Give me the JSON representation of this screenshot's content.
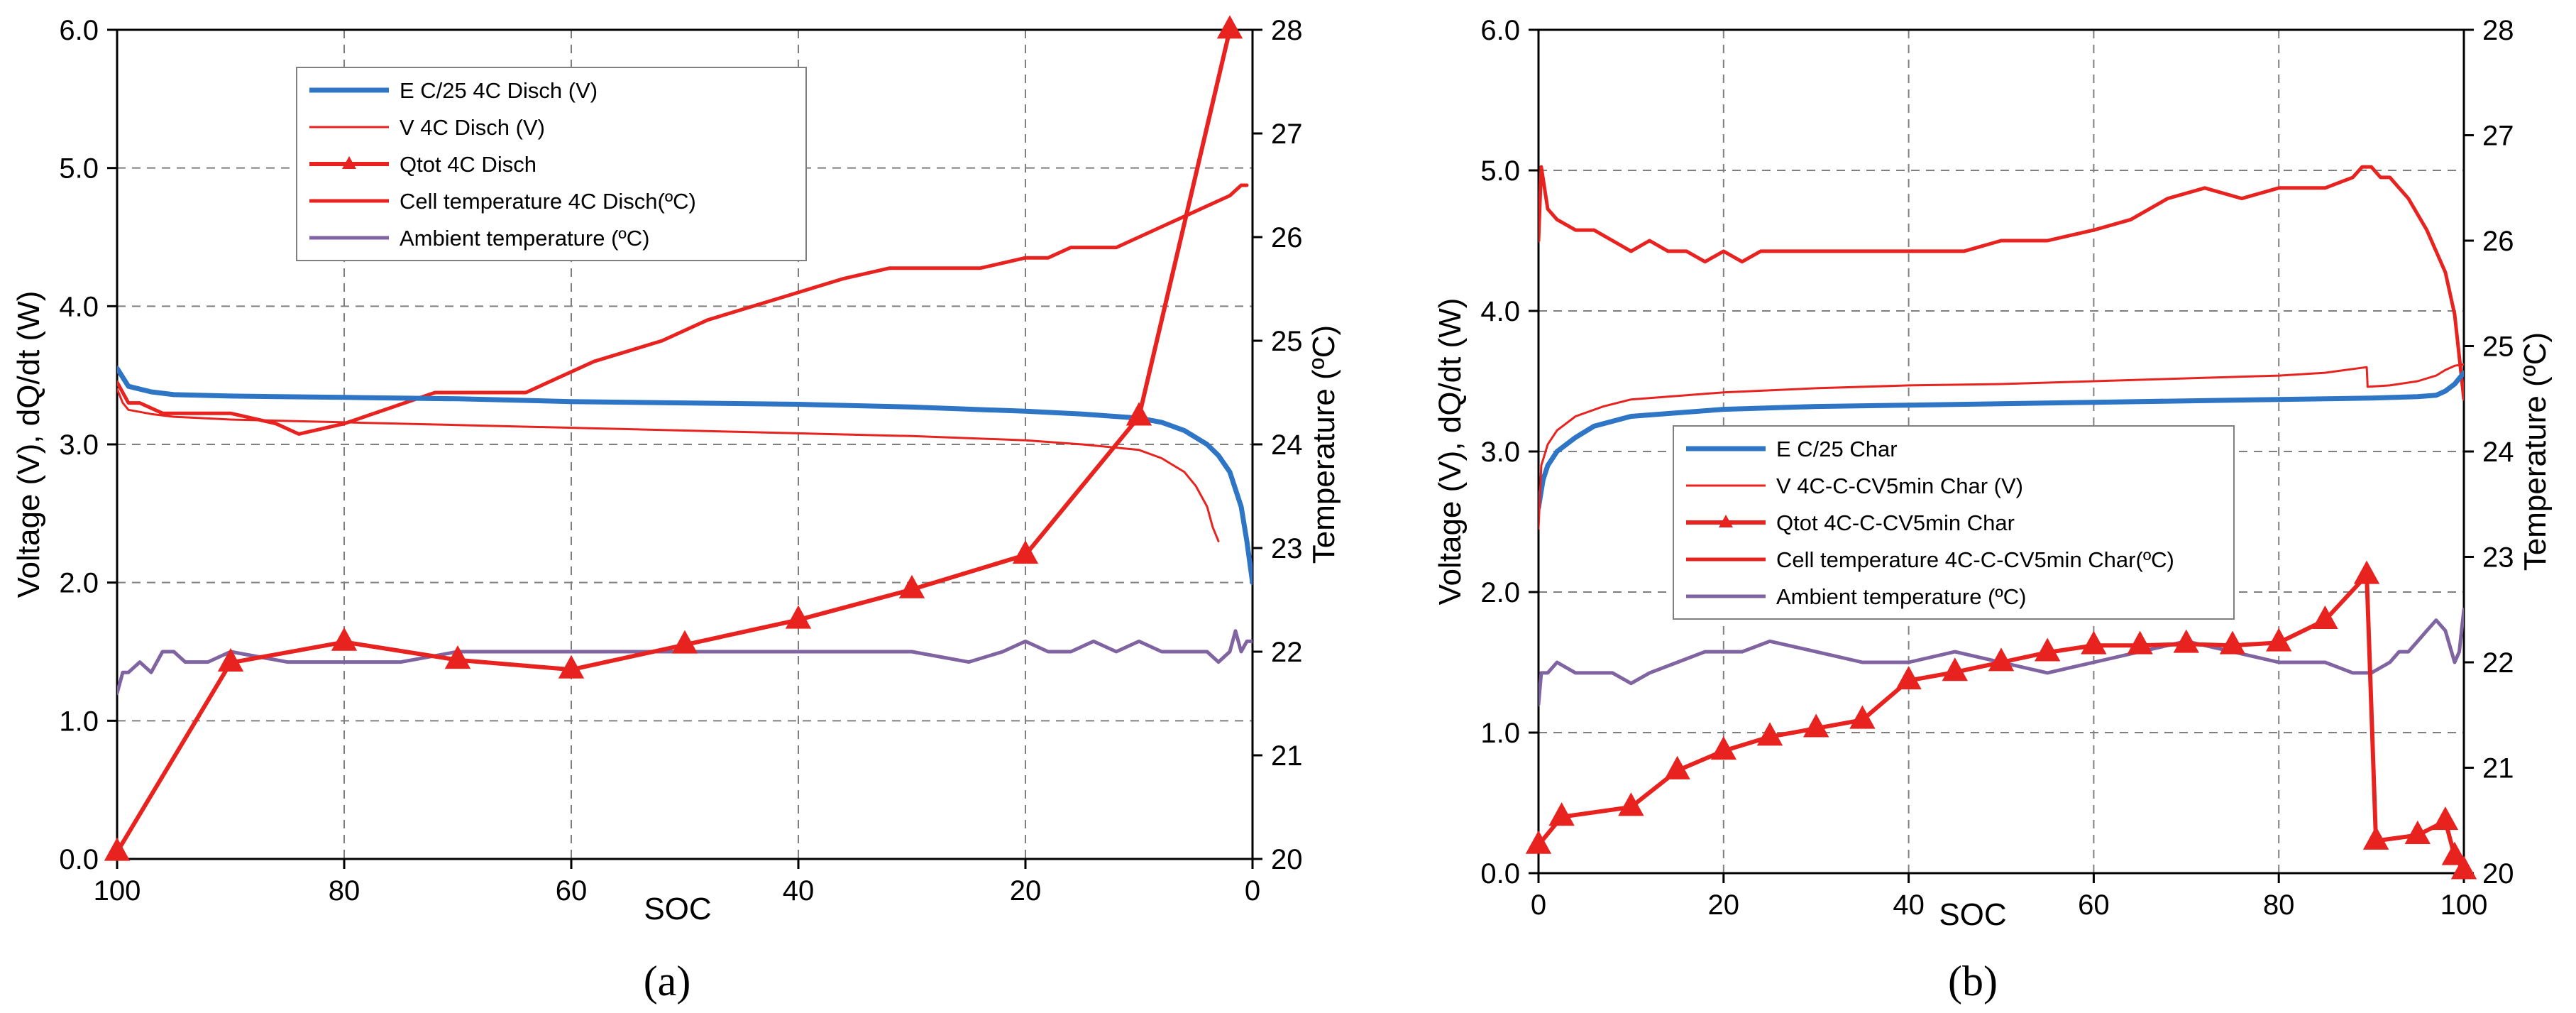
{
  "chart_data": [
    {
      "type": "line",
      "panel_label": "(a)",
      "xlabel": "SOC",
      "ylabel_left": "Voltage (V),    dQ/dt (W)",
      "ylabel_right": "Temperature (ºC)",
      "xlim": [
        100,
        0
      ],
      "ylim_left": [
        0.0,
        6.0
      ],
      "ylim_right": [
        20,
        28
      ],
      "xticks": [
        "100",
        "80",
        "60",
        "40",
        "20",
        "0"
      ],
      "xtick_values": [
        100,
        80,
        60,
        40,
        20,
        0
      ],
      "yticks_left": [
        "0.0",
        "1.0",
        "2.0",
        "3.0",
        "4.0",
        "5.0",
        "6.0"
      ],
      "ytick_values_left": [
        0,
        1,
        2,
        3,
        4,
        5,
        6
      ],
      "yticks_right": [
        "20",
        "21",
        "22",
        "23",
        "24",
        "25",
        "26",
        "27",
        "28"
      ],
      "ytick_values_right": [
        20,
        21,
        22,
        23,
        24,
        25,
        26,
        27,
        28
      ],
      "grid": true,
      "legend_position": "top-center",
      "series": [
        {
          "name": "E C/25 4C Disch (V)",
          "axis": "left",
          "color": "#2e75c6",
          "width": 7,
          "marker": "none",
          "x": [
            100,
            99,
            97,
            95,
            90,
            80,
            70,
            60,
            50,
            40,
            30,
            20,
            15,
            10,
            8,
            6,
            4,
            3,
            2,
            1,
            0.5,
            0
          ],
          "y": [
            3.55,
            3.42,
            3.38,
            3.36,
            3.35,
            3.34,
            3.33,
            3.31,
            3.3,
            3.29,
            3.27,
            3.24,
            3.22,
            3.19,
            3.16,
            3.1,
            3.0,
            2.92,
            2.8,
            2.55,
            2.3,
            2.0
          ]
        },
        {
          "name": "V 4C Disch (V)",
          "axis": "left",
          "color": "#e8231f",
          "width": 3,
          "marker": "none",
          "x": [
            100,
            99.5,
            99,
            97,
            95,
            90,
            80,
            70,
            60,
            50,
            40,
            30,
            20,
            15,
            10,
            8,
            6,
            5,
            4,
            3.5,
            3
          ],
          "y": [
            3.4,
            3.3,
            3.25,
            3.22,
            3.2,
            3.18,
            3.16,
            3.14,
            3.12,
            3.1,
            3.08,
            3.06,
            3.03,
            3.0,
            2.96,
            2.9,
            2.8,
            2.7,
            2.55,
            2.4,
            2.3
          ]
        },
        {
          "name": "Qtot 4C Disch",
          "axis": "left",
          "color": "#e8231f",
          "width": 6,
          "marker": "triangle",
          "x": [
            100,
            90,
            80,
            70,
            60,
            50,
            40,
            30,
            20,
            10,
            2
          ],
          "y": [
            0.05,
            1.42,
            1.57,
            1.44,
            1.37,
            1.55,
            1.73,
            1.95,
            2.2,
            3.2,
            6.0
          ]
        },
        {
          "name": "Cell temperature 4C Disch(ºC)",
          "axis": "right",
          "color": "#e8231f",
          "width": 5,
          "marker": "none",
          "x": [
            100,
            99,
            98,
            96,
            94,
            92,
            90,
            86,
            84,
            80,
            72,
            64,
            58,
            52,
            48,
            42,
            36,
            32,
            28,
            24,
            20,
            18,
            16,
            14,
            12,
            10,
            8,
            6,
            4,
            2,
            1,
            0.5
          ],
          "y": [
            24.6,
            24.4,
            24.4,
            24.3,
            24.3,
            24.3,
            24.3,
            24.2,
            24.1,
            24.2,
            24.5,
            24.5,
            24.8,
            25.0,
            25.2,
            25.4,
            25.6,
            25.7,
            25.7,
            25.7,
            25.8,
            25.8,
            25.9,
            25.9,
            25.9,
            26.0,
            26.1,
            26.2,
            26.3,
            26.4,
            26.5,
            26.5
          ]
        },
        {
          "name": "Ambient temperature (ºC)",
          "axis": "right",
          "color": "#8064a2",
          "width": 5,
          "marker": "none",
          "x": [
            100,
            99.5,
            99,
            98,
            97,
            96,
            95,
            94,
            92,
            90,
            85,
            80,
            75,
            70,
            65,
            60,
            55,
            50,
            45,
            40,
            35,
            30,
            25,
            22,
            20,
            18,
            16,
            14,
            12,
            10,
            8,
            6,
            4,
            3,
            2,
            1.5,
            1,
            0.5,
            0
          ],
          "y": [
            21.6,
            21.8,
            21.8,
            21.9,
            21.8,
            22.0,
            22.0,
            21.9,
            21.9,
            22.0,
            21.9,
            21.9,
            21.9,
            22.0,
            22.0,
            22.0,
            22.0,
            22.0,
            22.0,
            22.0,
            22.0,
            22.0,
            21.9,
            22.0,
            22.1,
            22.0,
            22.0,
            22.1,
            22.0,
            22.1,
            22.0,
            22.0,
            22.0,
            21.9,
            22.0,
            22.2,
            22.0,
            22.1,
            22.1
          ]
        }
      ]
    },
    {
      "type": "line",
      "panel_label": "(b)",
      "xlabel": "SOC",
      "ylabel_left": "Voltage (V),    dQ/dt (W)",
      "ylabel_right": "Temperature (ºC)",
      "xlim": [
        0,
        100
      ],
      "ylim_left": [
        0.0,
        6.0
      ],
      "ylim_right": [
        20,
        28
      ],
      "xticks": [
        "0",
        "20",
        "40",
        "60",
        "80",
        "100"
      ],
      "xtick_values": [
        0,
        20,
        40,
        60,
        80,
        100
      ],
      "yticks_left": [
        "0.0",
        "1.0",
        "2.0",
        "3.0",
        "4.0",
        "5.0",
        "6.0"
      ],
      "ytick_values_left": [
        0,
        1,
        2,
        3,
        4,
        5,
        6
      ],
      "yticks_right": [
        "20",
        "21",
        "22",
        "23",
        "24",
        "25",
        "26",
        "27",
        "28"
      ],
      "ytick_values_right": [
        20,
        21,
        22,
        23,
        24,
        25,
        26,
        27,
        28
      ],
      "grid": true,
      "legend_position": "center-left",
      "series": [
        {
          "name": "E C/25 Char",
          "axis": "left",
          "color": "#2e75c6",
          "width": 7,
          "marker": "none",
          "x": [
            0,
            0.5,
            1,
            2,
            4,
            6,
            10,
            20,
            30,
            40,
            50,
            60,
            70,
            80,
            90,
            95,
            97,
            98,
            99,
            100
          ],
          "y": [
            2.6,
            2.8,
            2.9,
            3.0,
            3.1,
            3.18,
            3.25,
            3.3,
            3.32,
            3.33,
            3.34,
            3.35,
            3.36,
            3.37,
            3.38,
            3.39,
            3.4,
            3.43,
            3.48,
            3.56
          ]
        },
        {
          "name": "V 4C-C-CV5min Char (V)",
          "axis": "left",
          "color": "#e8231f",
          "width": 3,
          "marker": "none",
          "x": [
            0,
            0.3,
            1,
            2,
            4,
            7,
            10,
            20,
            30,
            40,
            50,
            60,
            70,
            80,
            85,
            89.5,
            89.6,
            92,
            95,
            97,
            98,
            99,
            100
          ],
          "y": [
            2.45,
            2.9,
            3.05,
            3.15,
            3.25,
            3.32,
            3.37,
            3.42,
            3.45,
            3.47,
            3.48,
            3.5,
            3.52,
            3.54,
            3.56,
            3.6,
            3.46,
            3.47,
            3.5,
            3.54,
            3.58,
            3.61,
            3.62
          ]
        },
        {
          "name": "Qtot 4C-C-CV5min Char",
          "axis": "left",
          "color": "#e8231f",
          "width": 6,
          "marker": "triangle",
          "x": [
            0,
            2.5,
            10,
            15,
            20,
            25,
            30,
            35,
            40,
            45,
            50,
            55,
            60,
            65,
            70,
            75,
            80,
            85,
            89.5,
            90.5,
            95,
            98,
            99,
            100
          ],
          "y": [
            0.2,
            0.4,
            0.47,
            0.73,
            0.87,
            0.97,
            1.03,
            1.09,
            1.37,
            1.43,
            1.5,
            1.57,
            1.62,
            1.62,
            1.63,
            1.62,
            1.64,
            1.8,
            2.12,
            0.23,
            0.27,
            0.37,
            0.12,
            0.02
          ]
        },
        {
          "name": "Cell temperature 4C-C-CV5min Char(ºC)",
          "axis": "right",
          "color": "#e8231f",
          "width": 5,
          "marker": "none",
          "x": [
            0,
            0.3,
            1,
            2,
            4,
            6,
            8,
            10,
            12,
            14,
            16,
            18,
            20,
            22,
            24,
            26,
            30,
            34,
            38,
            42,
            46,
            50,
            55,
            60,
            64,
            68,
            72,
            76,
            80,
            85,
            88,
            89,
            90,
            91,
            92,
            94,
            96,
            98,
            99,
            100
          ],
          "y": [
            26.0,
            26.7,
            26.3,
            26.2,
            26.1,
            26.1,
            26.0,
            25.9,
            26.0,
            25.9,
            25.9,
            25.8,
            25.9,
            25.8,
            25.9,
            25.9,
            25.9,
            25.9,
            25.9,
            25.9,
            25.9,
            26.0,
            26.0,
            26.1,
            26.2,
            26.4,
            26.5,
            26.4,
            26.5,
            26.5,
            26.6,
            26.7,
            26.7,
            26.6,
            26.6,
            26.4,
            26.1,
            25.7,
            25.3,
            24.5
          ]
        },
        {
          "name": "Ambient temperature (ºC)",
          "axis": "right",
          "color": "#8064a2",
          "width": 5,
          "marker": "none",
          "x": [
            0,
            0.3,
            1,
            2,
            4,
            6,
            8,
            10,
            12,
            15,
            18,
            20,
            22,
            25,
            30,
            35,
            40,
            45,
            50,
            55,
            60,
            65,
            70,
            75,
            80,
            85,
            88,
            90,
            92,
            93,
            94,
            95,
            96,
            97,
            98,
            99,
            99.5,
            100
          ],
          "y": [
            21.6,
            21.9,
            21.9,
            22.0,
            21.9,
            21.9,
            21.9,
            21.8,
            21.9,
            22.0,
            22.1,
            22.1,
            22.1,
            22.2,
            22.1,
            22.0,
            22.0,
            22.1,
            22.0,
            21.9,
            22.0,
            22.1,
            22.2,
            22.1,
            22.0,
            22.0,
            21.9,
            21.9,
            22.0,
            22.1,
            22.1,
            22.2,
            22.3,
            22.4,
            22.3,
            22.0,
            22.1,
            22.5
          ]
        }
      ]
    }
  ]
}
